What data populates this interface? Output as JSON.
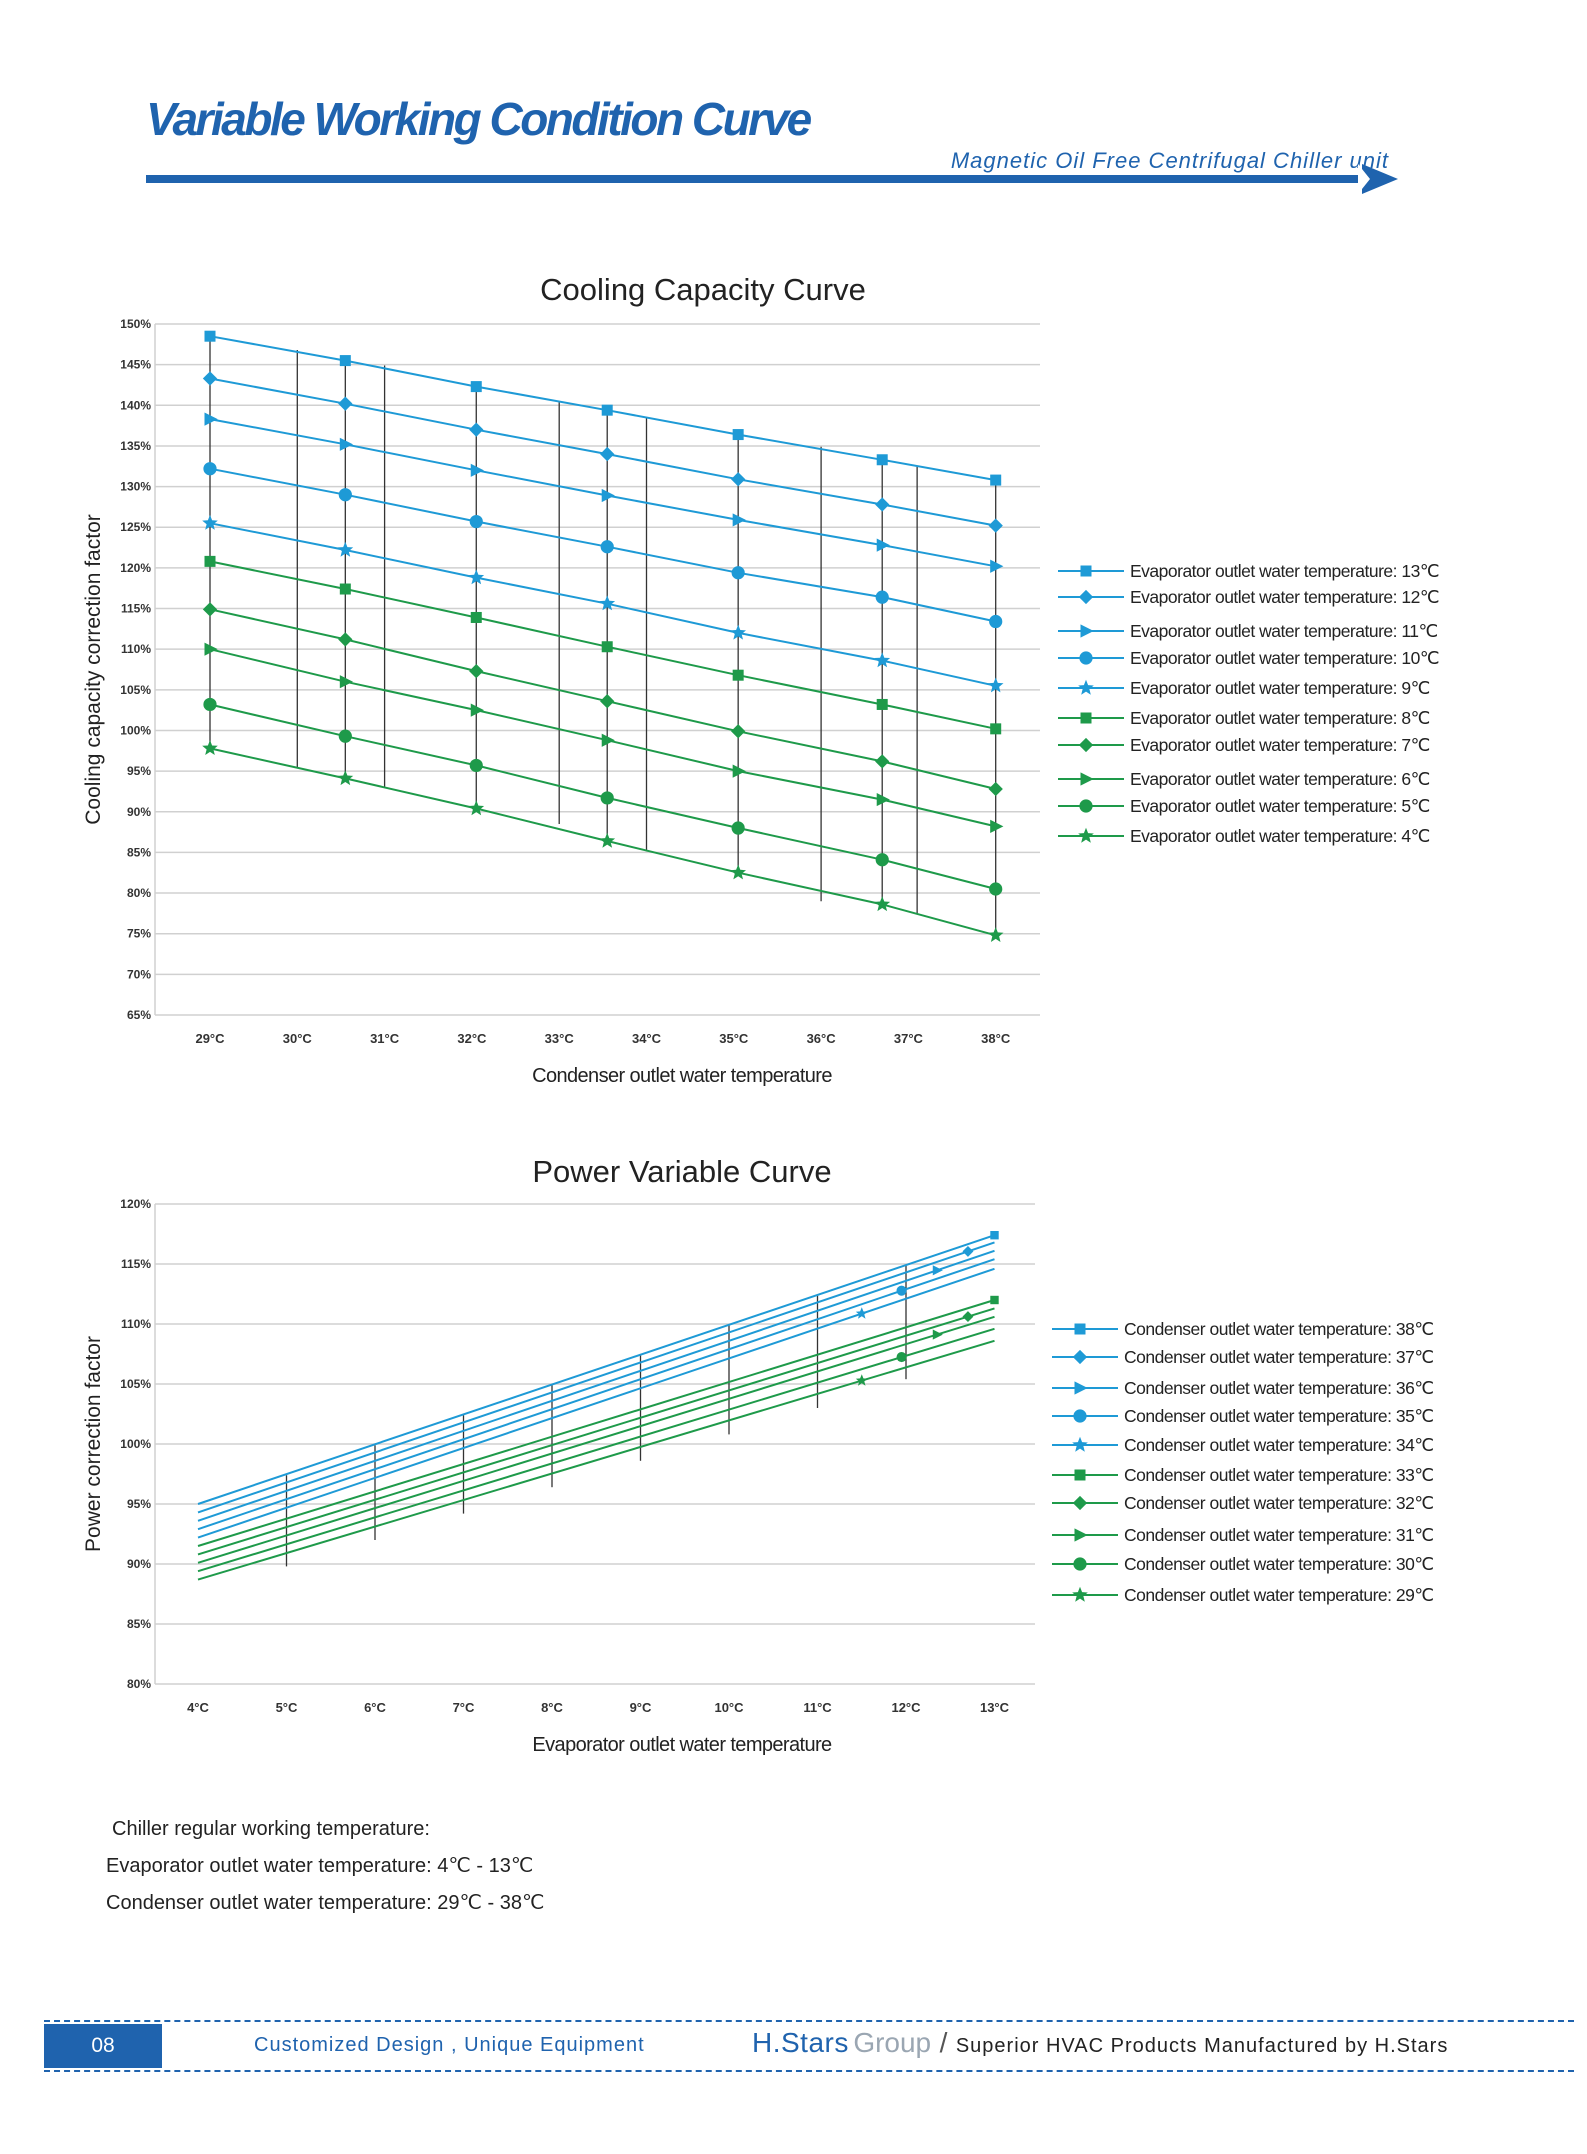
{
  "header": {
    "title": "Variable Working Condition Curve",
    "subtitle": "Magnetic Oil Free Centrifugal Chiller unit"
  },
  "chart_data": [
    {
      "type": "line",
      "title": "Cooling Capacity Curve",
      "xlabel": "Condenser outlet water temperature",
      "ylabel": "Cooling capacity correction factor",
      "categories": [
        "29°C",
        "30°C",
        "31°C",
        "32°C",
        "33°C",
        "34°C",
        "35°C",
        "36°C",
        "37°C",
        "38°C"
      ],
      "y_ticks": [
        "150%",
        "145%",
        "140%",
        "135%",
        "130%",
        "125%",
        "120%",
        "115%",
        "110%",
        "105%",
        "100%",
        "95%",
        "90%",
        "85%",
        "80%",
        "75%",
        "70%",
        "65%"
      ],
      "ylim": [
        65,
        150
      ],
      "x": [
        29,
        30.55,
        32.05,
        33.55,
        35.05,
        36.7,
        38
      ],
      "series": [
        {
          "name": "Evaporator outlet water temperature: 13℃",
          "marker": "square",
          "color": "#1e9ad6",
          "values": [
            148.5,
            145.5,
            142.3,
            139.4,
            136.4,
            133.3,
            130.8
          ]
        },
        {
          "name": "Evaporator outlet water temperature: 12℃",
          "marker": "diamond",
          "color": "#1e9ad6",
          "values": [
            143.3,
            140.2,
            137.0,
            134.0,
            130.9,
            127.8,
            125.2
          ]
        },
        {
          "name": "Evaporator outlet water temperature: 11℃",
          "marker": "triangle",
          "color": "#1e9ad6",
          "values": [
            138.3,
            135.2,
            132.0,
            128.9,
            125.9,
            122.8,
            120.2
          ]
        },
        {
          "name": "Evaporator outlet water temperature: 10℃",
          "marker": "circle",
          "color": "#1e9ad6",
          "values": [
            132.2,
            129.0,
            125.7,
            122.6,
            119.4,
            116.4,
            113.4
          ]
        },
        {
          "name": "Evaporator outlet water temperature: 9℃",
          "marker": "star",
          "color": "#1e9ad6",
          "values": [
            125.5,
            122.2,
            118.8,
            115.6,
            112.0,
            108.6,
            105.5
          ]
        },
        {
          "name": "Evaporator outlet water temperature: 8℃",
          "marker": "square",
          "color": "#1e9a4a",
          "values": [
            120.8,
            117.4,
            113.9,
            110.3,
            106.8,
            103.2,
            100.2
          ]
        },
        {
          "name": "Evaporator outlet water temperature: 7℃",
          "marker": "diamond",
          "color": "#1e9a4a",
          "values": [
            114.9,
            111.2,
            107.3,
            103.6,
            99.9,
            96.2,
            92.8
          ]
        },
        {
          "name": "Evaporator outlet water temperature: 6℃",
          "marker": "triangle",
          "color": "#1e9a4a",
          "values": [
            110.0,
            106.0,
            102.5,
            98.8,
            95.0,
            91.5,
            88.2
          ]
        },
        {
          "name": "Evaporator outlet water temperature: 5℃",
          "marker": "circle",
          "color": "#1e9a4a",
          "values": [
            103.2,
            99.3,
            95.7,
            91.7,
            88.0,
            84.1,
            80.5
          ]
        },
        {
          "name": "Evaporator outlet water temperature: 4℃",
          "marker": "star",
          "color": "#1e9a4a",
          "values": [
            97.8,
            94.1,
            90.4,
            86.4,
            82.5,
            78.6,
            74.8
          ]
        }
      ],
      "legend": "right"
    },
    {
      "type": "line",
      "title": "Power Variable Curve",
      "xlabel": "Evaporator outlet water temperature",
      "ylabel": "Power correction factor",
      "categories": [
        "4°C",
        "5°C",
        "6°C",
        "7°C",
        "8°C",
        "9°C",
        "10°C",
        "11°C",
        "12°C",
        "13°C"
      ],
      "y_ticks": [
        "120%",
        "115%",
        "110%",
        "105%",
        "100%",
        "95%",
        "90%",
        "85%",
        "80%"
      ],
      "ylim": [
        80,
        120
      ],
      "x": [
        4,
        13
      ],
      "series": [
        {
          "name": "Condenser outlet water temperature: 38℃",
          "marker": "square",
          "color": "#1e9ad6",
          "values": [
            95.0,
            117.4
          ],
          "marker_x": 13.0
        },
        {
          "name": "Condenser outlet water temperature: 37℃",
          "marker": "diamond",
          "color": "#1e9ad6",
          "values": [
            94.3,
            116.8
          ],
          "marker_x": 12.7
        },
        {
          "name": "Condenser outlet water temperature: 36℃",
          "marker": "triangle",
          "color": "#1e9ad6",
          "values": [
            93.6,
            116.1
          ],
          "marker_x": 12.35
        },
        {
          "name": "Condenser outlet water temperature: 35℃",
          "marker": "circle",
          "color": "#1e9ad6",
          "values": [
            92.9,
            115.4
          ],
          "marker_x": 11.95
        },
        {
          "name": "Condenser outlet water temperature: 34℃",
          "marker": "star",
          "color": "#1e9ad6",
          "values": [
            92.2,
            114.6
          ],
          "marker_x": 11.5
        },
        {
          "name": "Condenser outlet water temperature: 33℃",
          "marker": "square",
          "color": "#1e9a4a",
          "values": [
            91.5,
            112.0
          ],
          "marker_x": 13.0
        },
        {
          "name": "Condenser outlet water temperature: 32℃",
          "marker": "diamond",
          "color": "#1e9a4a",
          "values": [
            90.8,
            111.3
          ],
          "marker_x": 12.7
        },
        {
          "name": "Condenser outlet water temperature: 31℃",
          "marker": "triangle",
          "color": "#1e9a4a",
          "values": [
            90.1,
            110.6
          ],
          "marker_x": 12.35
        },
        {
          "name": "Condenser outlet water temperature: 30℃",
          "marker": "circle",
          "color": "#1e9a4a",
          "values": [
            89.4,
            109.6
          ],
          "marker_x": 11.95
        },
        {
          "name": "Condenser outlet water temperature: 29℃",
          "marker": "star",
          "color": "#1e9a4a",
          "values": [
            88.7,
            108.6
          ],
          "marker_x": 11.5
        }
      ],
      "legend": "right"
    }
  ],
  "notes": {
    "line1": "Chiller regular working temperature:",
    "line2": "Evaporator outlet water temperature: 4℃ - 13℃",
    "line3": "Condenser outlet water temperature: 29℃ - 38℃"
  },
  "footer": {
    "page_number": "08",
    "slogan": "Customized Design , Unique Equipment",
    "brand": "H.Stars",
    "brand_group": "Group",
    "slash": "/",
    "tagline": "Superior HVAC Products Manufactured by H.Stars"
  }
}
